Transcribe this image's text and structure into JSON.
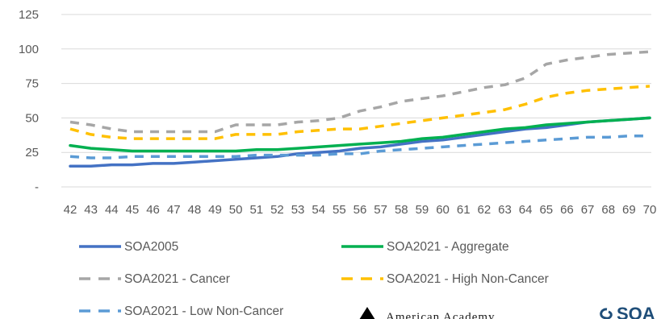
{
  "chart_data": {
    "type": "line",
    "title": "",
    "xlabel": "",
    "ylabel": "",
    "x": [
      42,
      43,
      44,
      45,
      46,
      47,
      48,
      49,
      50,
      51,
      52,
      53,
      54,
      55,
      56,
      57,
      58,
      59,
      60,
      61,
      62,
      63,
      64,
      65,
      66,
      67,
      68,
      69,
      70
    ],
    "ylim": [
      0,
      125
    ],
    "yticks": [
      {
        "value": 0,
        "label": "-"
      },
      {
        "value": 25,
        "label": "25"
      },
      {
        "value": 50,
        "label": "50"
      },
      {
        "value": 75,
        "label": "75"
      },
      {
        "value": 100,
        "label": "100"
      },
      {
        "value": 125,
        "label": "125"
      }
    ],
    "grid": true,
    "legend_position": "bottom",
    "series": [
      {
        "name": "SOA2005",
        "color": "#4472C4",
        "dash": "solid",
        "values": [
          15,
          15,
          16,
          16,
          17,
          17,
          18,
          19,
          20,
          21,
          22,
          24,
          25,
          26,
          28,
          29,
          31,
          33,
          34,
          36,
          38,
          40,
          42,
          43,
          45,
          47,
          48,
          49,
          50
        ]
      },
      {
        "name": "SOA2021 - Aggregate",
        "color": "#00B050",
        "dash": "solid",
        "values": [
          30,
          28,
          27,
          26,
          26,
          26,
          26,
          26,
          26,
          27,
          27,
          28,
          29,
          30,
          31,
          32,
          33,
          35,
          36,
          38,
          40,
          42,
          43,
          45,
          46,
          47,
          48,
          49,
          50
        ]
      },
      {
        "name": "SOA2021 - Cancer",
        "color": "#A6A6A6",
        "dash": "dashed",
        "values": [
          47,
          45,
          42,
          40,
          40,
          40,
          40,
          40,
          45,
          45,
          45,
          47,
          48,
          50,
          55,
          58,
          62,
          64,
          66,
          69,
          72,
          74,
          79,
          89,
          92,
          94,
          96,
          97,
          98
        ]
      },
      {
        "name": "SOA2021 - High Non-Cancer",
        "color": "#FFC000",
        "dash": "dashed",
        "values": [
          42,
          38,
          36,
          35,
          35,
          35,
          35,
          35,
          38,
          38,
          38,
          40,
          41,
          42,
          42,
          44,
          46,
          48,
          50,
          52,
          54,
          56,
          60,
          65,
          68,
          70,
          71,
          72,
          73
        ]
      },
      {
        "name": "SOA2021 - Low Non-Cancer",
        "color": "#5B9BD5",
        "dash": "dashed",
        "values": [
          22,
          21,
          21,
          22,
          22,
          22,
          22,
          22,
          22,
          23,
          23,
          23,
          23,
          24,
          24,
          26,
          27,
          28,
          29,
          30,
          31,
          32,
          33,
          34,
          35,
          36,
          36,
          37,
          37
        ]
      }
    ]
  },
  "logos": {
    "american_academy": "American Academy",
    "american_academy_icon": "triangle-logo-icon",
    "soa_text": "SOA",
    "soa_icon": "soa-swirl-icon"
  }
}
